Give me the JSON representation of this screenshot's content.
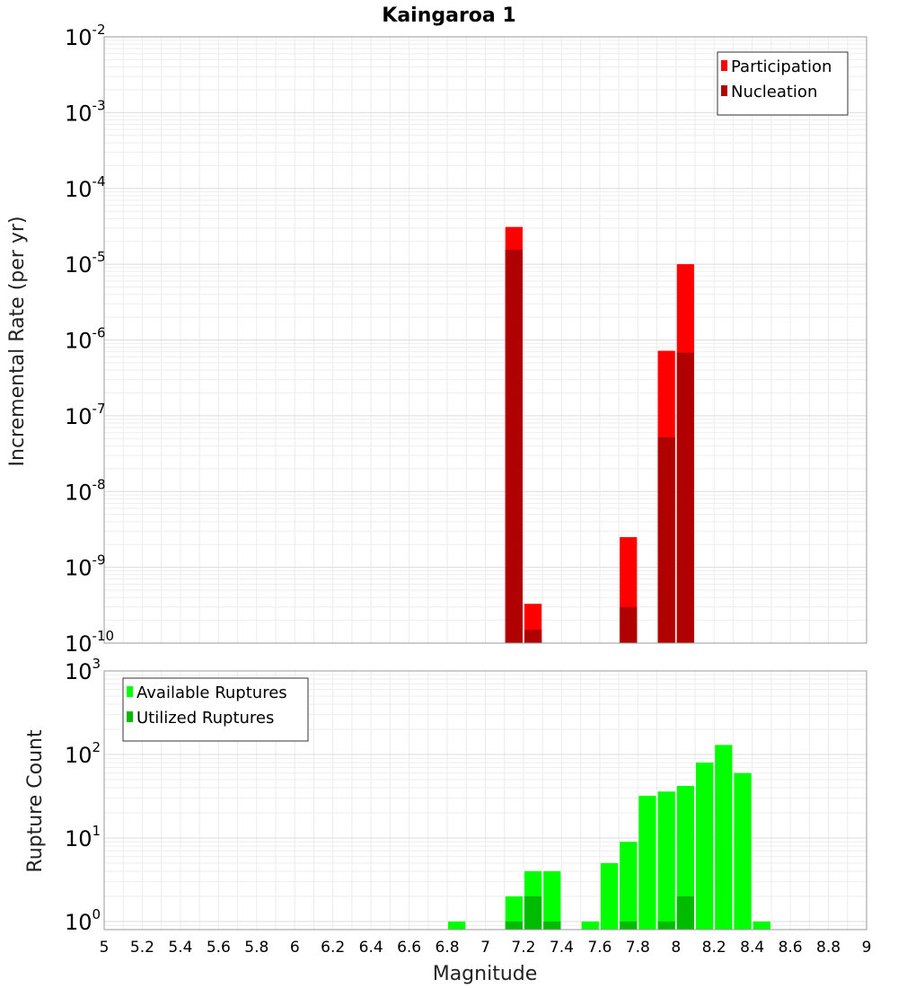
{
  "chart_data": [
    {
      "type": "bar",
      "title": "Kaingaroa 1",
      "xlabel": "",
      "ylabel": "Incremental Rate (per yr)",
      "xlim": [
        5,
        9
      ],
      "ylim": [
        1e-10,
        0.01
      ],
      "y_scale": "log",
      "grid": true,
      "legend_position": "top-right",
      "bin_width": 0.1,
      "series": [
        {
          "name": "Participation",
          "color": "#ff0000",
          "x": [
            7.15,
            7.25,
            7.75,
            7.95,
            8.05
          ],
          "values": [
            3.1e-05,
            3.3e-10,
            2.5e-09,
            7.2e-07,
            1e-05
          ]
        },
        {
          "name": "Nucleation",
          "color": "#b00000",
          "x": [
            7.15,
            7.25,
            7.75,
            7.95,
            8.05
          ],
          "values": [
            1.55e-05,
            1.5e-10,
            3e-10,
            5.2e-08,
            6.8e-07
          ]
        }
      ],
      "y_ticks": [
        {
          "base": "10",
          "exp": "-2"
        },
        {
          "base": "10",
          "exp": "-3"
        },
        {
          "base": "10",
          "exp": "-4"
        },
        {
          "base": "10",
          "exp": "-5"
        },
        {
          "base": "10",
          "exp": "-6"
        },
        {
          "base": "10",
          "exp": "-7"
        },
        {
          "base": "10",
          "exp": "-8"
        },
        {
          "base": "10",
          "exp": "-9"
        },
        {
          "base": "10",
          "exp": "-10"
        }
      ]
    },
    {
      "type": "bar",
      "title": "",
      "xlabel": "Magnitude",
      "ylabel": "Rupture Count",
      "xlim": [
        5,
        9
      ],
      "ylim": [
        0.8,
        1000
      ],
      "y_scale": "log",
      "grid": true,
      "legend_position": "top-left",
      "bin_width": 0.1,
      "series": [
        {
          "name": "Available Ruptures",
          "color": "#00ff00",
          "x": [
            6.85,
            7.15,
            7.25,
            7.35,
            7.55,
            7.65,
            7.75,
            7.85,
            7.95,
            8.05,
            8.15,
            8.25,
            8.35,
            8.45
          ],
          "values": [
            1,
            2,
            4,
            4,
            1,
            5,
            9,
            32,
            36,
            42,
            80,
            130,
            60,
            1
          ]
        },
        {
          "name": "Utilized Ruptures",
          "color": "#00bb00",
          "x": [
            7.15,
            7.25,
            7.35,
            7.75,
            7.95,
            8.05
          ],
          "values": [
            1,
            2,
            1,
            1,
            1,
            2
          ]
        }
      ],
      "x_ticks": [
        "5",
        "5.2",
        "5.4",
        "5.6",
        "5.8",
        "6",
        "6.2",
        "6.4",
        "6.6",
        "6.8",
        "7",
        "7.2",
        "7.4",
        "7.6",
        "7.8",
        "8",
        "8.2",
        "8.4",
        "8.6",
        "8.8",
        "9"
      ],
      "y_ticks": [
        {
          "base": "10",
          "exp": "3"
        },
        {
          "base": "10",
          "exp": "2"
        },
        {
          "base": "10",
          "exp": "1"
        },
        {
          "base": "10",
          "exp": "0"
        }
      ]
    }
  ]
}
